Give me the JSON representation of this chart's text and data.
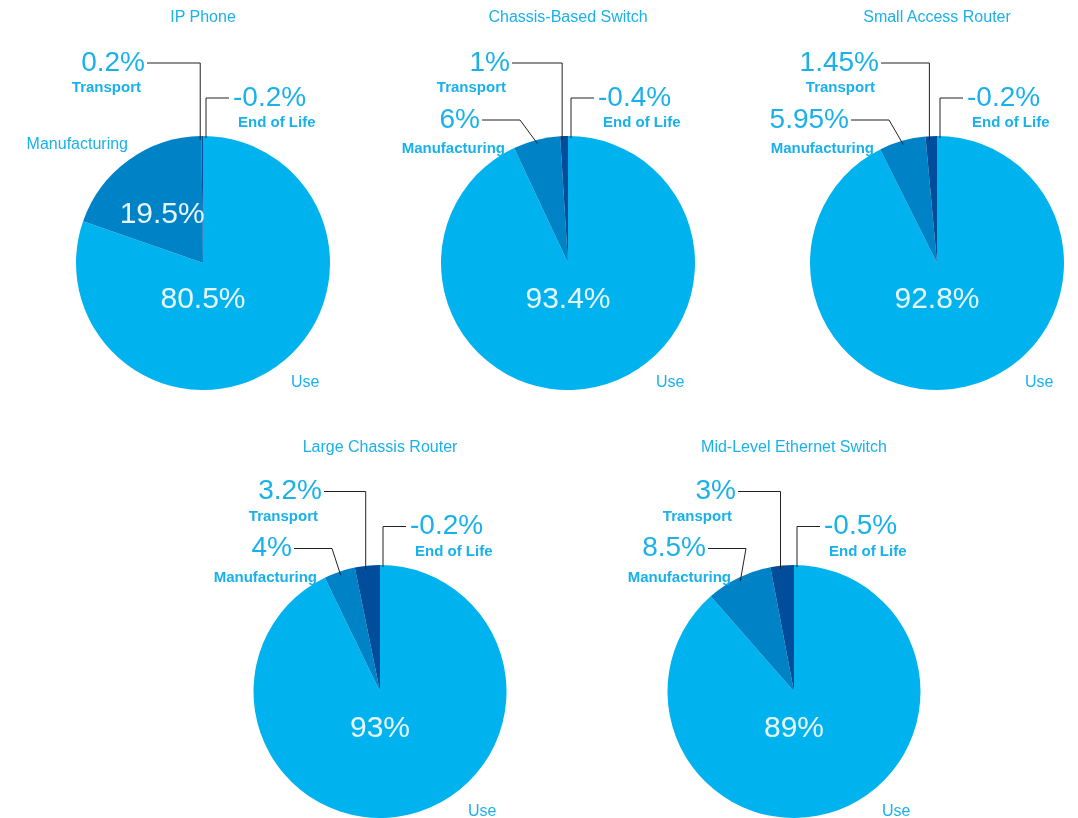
{
  "chart_data": [
    {
      "type": "pie",
      "title": "IP Phone",
      "categories": [
        "Use",
        "Manufacturing",
        "Transport"
      ],
      "values": [
        80.5,
        19.5,
        0.2
      ],
      "colors": [
        "#00b3ee",
        "#0082c6",
        "#004d9c"
      ],
      "value_labels": [
        "80.5%",
        "19.5%",
        "0.2%"
      ],
      "annotations": [
        "-0.2%",
        "End of Life"
      ]
    },
    {
      "type": "pie",
      "title": "Chassis-Based Switch",
      "categories": [
        "Use",
        "Manufacturing",
        "Transport"
      ],
      "values": [
        93.4,
        6,
        1
      ],
      "colors": [
        "#00b3ee",
        "#0082c6",
        "#004d9c"
      ],
      "value_labels": [
        "93.4%",
        "6%",
        "1%"
      ],
      "annotations": [
        "-0.4%",
        "End of Life"
      ]
    },
    {
      "type": "pie",
      "title": "Small Access Router",
      "categories": [
        "Use",
        "Manufacturing",
        "Transport"
      ],
      "values": [
        92.8,
        5.95,
        1.45
      ],
      "colors": [
        "#00b3ee",
        "#0082c6",
        "#004d9c"
      ],
      "value_labels": [
        "92.8%",
        "5.95%",
        "1.45%"
      ],
      "annotations": [
        "-0.2%",
        "End of Life"
      ]
    },
    {
      "type": "pie",
      "title": "Large Chassis Router",
      "categories": [
        "Use",
        "Manufacturing",
        "Transport"
      ],
      "values": [
        93,
        4,
        3.2
      ],
      "colors": [
        "#00b3ee",
        "#0082c6",
        "#004d9c"
      ],
      "value_labels": [
        "93%",
        "4%",
        "3.2%"
      ],
      "annotations": [
        "-0.2%",
        "End of Life"
      ]
    },
    {
      "type": "pie",
      "title": "Mid-Level Ethernet Switch",
      "categories": [
        "Use",
        "Manufacturing",
        "Transport"
      ],
      "values": [
        89,
        8.5,
        3
      ],
      "colors": [
        "#00b3ee",
        "#0082c6",
        "#004d9c"
      ],
      "value_labels": [
        "89%",
        "8.5%",
        "3%"
      ],
      "annotations": [
        "-0.5%",
        "End of Life"
      ]
    }
  ]
}
